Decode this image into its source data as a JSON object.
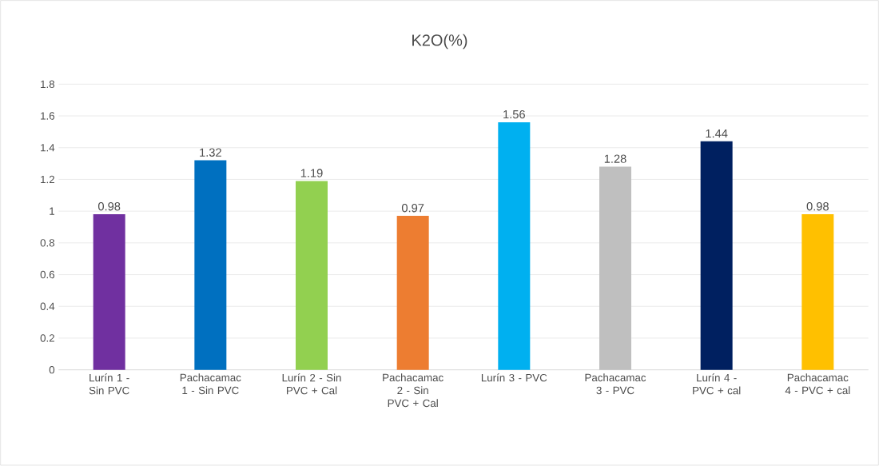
{
  "chart_data": {
    "type": "bar",
    "title": "K2O(%)",
    "categories": [
      "Lurín 1 - Sin PVC",
      "Pachacamac 1 - Sin PVC",
      "Lurín 2 - Sin PVC + Cal",
      "Pachacamac 2 - Sin PVC + Cal",
      "Lurín 3 - PVC",
      "Pachacamac 3 - PVC",
      "Lurín 4 - PVC + cal",
      "Pachacamac 4 - PVC + cal"
    ],
    "values": [
      0.98,
      1.32,
      1.19,
      0.97,
      1.56,
      1.28,
      1.44,
      0.98
    ],
    "colors": [
      "#7030a0",
      "#0070c0",
      "#92d050",
      "#ed7d31",
      "#00b0f0",
      "#bfbfbf",
      "#002060",
      "#ffc000"
    ],
    "ylim": [
      0,
      1.8
    ],
    "yticks": [
      0,
      0.2,
      0.4,
      0.6,
      0.8,
      1,
      1.2,
      1.4,
      1.6,
      1.8
    ],
    "grid": "y",
    "data_labels": true
  }
}
